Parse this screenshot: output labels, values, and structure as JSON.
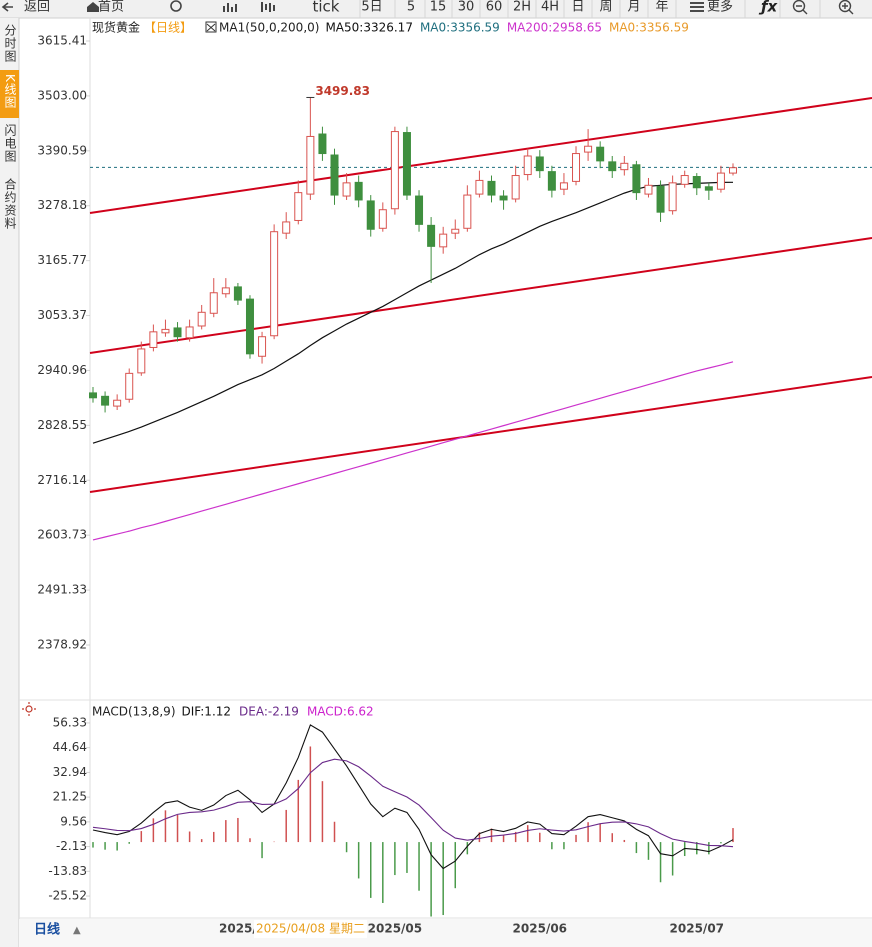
{
  "toolbar": [
    "返回",
    "首页",
    "tick",
    "5日",
    "5",
    "15",
    "30",
    "60",
    "2H",
    "4H",
    "日",
    "周",
    "月",
    "年",
    "更多"
  ],
  "sidebar": [
    "分时图",
    "K线图",
    "闪电图",
    "合约资料"
  ],
  "footer": {
    "period": "日线",
    "cursor": "2025/04/08 星期二"
  },
  "chart_data": [
    {
      "type": "candlestick",
      "title": "现货黄金",
      "period": "【日线】",
      "indicator": "MA1(50,0,200,0)",
      "open": [
        2895,
        2888,
        2868,
        2882,
        2936,
        2988,
        3018,
        3028,
        3008,
        3032,
        3058,
        3098,
        3112,
        3087,
        2970,
        3012,
        3222,
        3248,
        3302,
        3425,
        3382,
        3298,
        3326,
        3288,
        3232,
        3272,
        3428,
        3298,
        3238,
        3194,
        3222,
        3232,
        3302,
        3328,
        3298,
        3292,
        3342,
        3378,
        3348,
        3312,
        3328,
        3388,
        3398,
        3368,
        3352,
        3362,
        3302,
        3318,
        3268,
        3322,
        3338,
        3317,
        3312,
        3345
      ],
      "high": [
        2907,
        2898,
        2892,
        2945,
        3000,
        3035,
        3045,
        3040,
        3045,
        3075,
        3130,
        3130,
        3120,
        3095,
        3020,
        3240,
        3265,
        3330,
        3499.83,
        3440,
        3395,
        3345,
        3340,
        3300,
        3285,
        3440,
        3440,
        3310,
        3255,
        3235,
        3250,
        3320,
        3350,
        3340,
        3310,
        3360,
        3395,
        3392,
        3360,
        3345,
        3400,
        3435,
        3410,
        3380,
        3380,
        3370,
        3335,
        3330,
        3340,
        3350,
        3345,
        3325,
        3360,
        3365
      ],
      "low": [
        2875,
        2855,
        2860,
        2875,
        2930,
        2980,
        3010,
        3000,
        3000,
        3025,
        3050,
        3090,
        3075,
        2965,
        2955,
        3005,
        3210,
        3240,
        3290,
        3370,
        3280,
        3290,
        3275,
        3215,
        3225,
        3260,
        3290,
        3225,
        3120,
        3180,
        3210,
        3225,
        3295,
        3285,
        3270,
        3285,
        3330,
        3335,
        3295,
        3300,
        3320,
        3370,
        3355,
        3335,
        3340,
        3290,
        3295,
        3245,
        3260,
        3315,
        3300,
        3290,
        3305,
        3340
      ],
      "close": [
        2885,
        2870,
        2880,
        2935,
        2985,
        3020,
        3025,
        3010,
        3030,
        3060,
        3100,
        3110,
        3085,
        2975,
        3010,
        3225,
        3245,
        3305,
        3420,
        3385,
        3300,
        3325,
        3290,
        3230,
        3270,
        3430,
        3300,
        3240,
        3195,
        3220,
        3230,
        3300,
        3330,
        3300,
        3290,
        3340,
        3380,
        3350,
        3310,
        3325,
        3385,
        3400,
        3370,
        3350,
        3365,
        3305,
        3320,
        3265,
        3325,
        3340,
        3315,
        3310,
        3345,
        3356
      ],
      "up_color": "#d9534f",
      "down_color": "#3f8f3f",
      "lines": [
        {
          "name": "MA50:3326.17",
          "color": "#111111",
          "values": [
            2792,
            2800,
            2808,
            2816,
            2825,
            2835,
            2845,
            2855,
            2866,
            2877,
            2888,
            2900,
            2912,
            2922,
            2932,
            2945,
            2960,
            2975,
            2992,
            3008,
            3022,
            3036,
            3048,
            3060,
            3072,
            3086,
            3100,
            3114,
            3126,
            3138,
            3150,
            3164,
            3178,
            3190,
            3200,
            3212,
            3224,
            3236,
            3246,
            3255,
            3264,
            3274,
            3284,
            3294,
            3304,
            3312,
            3318,
            3320,
            3322,
            3323,
            3324,
            3325,
            3326,
            3326.17
          ]
        },
        {
          "name": "MA0:3356.59",
          "color": "#1f6f7f",
          "level": 3356.59
        },
        {
          "name": "MA200:2958.65",
          "color": "#cc33cc",
          "values": [
            2594,
            2600,
            2606,
            2612,
            2619,
            2625,
            2632,
            2639,
            2646,
            2653,
            2660,
            2667,
            2674,
            2681,
            2688,
            2695,
            2702,
            2709,
            2716,
            2723,
            2730,
            2737,
            2744,
            2751,
            2758,
            2765,
            2772,
            2779,
            2786,
            2793,
            2800,
            2807,
            2814,
            2821,
            2828,
            2835,
            2842,
            2849,
            2856,
            2863,
            2870,
            2877,
            2884,
            2891,
            2898,
            2905,
            2912,
            2919,
            2926,
            2933,
            2940,
            2946,
            2952,
            2958.65
          ]
        },
        {
          "name": "MA0:3356.59",
          "color": "#e89a2a"
        }
      ],
      "trendlines": [
        {
          "start": 3263.3,
          "end": 3498.7
        },
        {
          "start": 2976.7,
          "end": 3212.1
        },
        {
          "start": 2692.2,
          "end": 2927.6
        }
      ],
      "trend_color": "#d0021b",
      "peak_color": "#c0392b",
      "ylim": [
        2266.3,
        3662.5
      ],
      "yticks": [
        3615.41,
        {
          "value": 3503,
          "label": "3503.00"
        },
        3390.59,
        3278.18,
        3165.77,
        3053.37,
        2940.96,
        2828.55,
        2716.14,
        2603.73,
        2491.33,
        2378.92
      ]
    },
    {
      "type": "macd",
      "title": "MACD(13,8,9)",
      "categories": [
        null,
        null,
        null,
        null,
        null,
        null,
        null,
        null,
        null,
        null,
        null,
        null,
        "2025/",
        null,
        null,
        null,
        null,
        null,
        null,
        null,
        null,
        null,
        null,
        null,
        null,
        "2025/05",
        null,
        null,
        null,
        null,
        null,
        null,
        null,
        null,
        null,
        null,
        null,
        "2025/06",
        null,
        null,
        null,
        null,
        null,
        null,
        null,
        null,
        null,
        null,
        null,
        null,
        "2025/07",
        null,
        null,
        null
      ],
      "series": [
        {
          "name": "DIF:1.12",
          "color": "#111111",
          "values": [
            5.7,
            4.5,
            3.5,
            5.0,
            9.0,
            14.0,
            18.5,
            19.5,
            16.5,
            15.0,
            17.5,
            22.0,
            24.5,
            20.0,
            14.0,
            18.0,
            28.0,
            40.0,
            55.4,
            52.0,
            44.0,
            36.0,
            27.0,
            18.0,
            12.0,
            16.0,
            14.0,
            6.0,
            -6.0,
            -12.5,
            -9.0,
            -2.0,
            4.0,
            6.0,
            5.0,
            6.5,
            9.5,
            8.5,
            4.0,
            3.5,
            7.5,
            12.0,
            13.0,
            11.5,
            10.0,
            6.0,
            3.0,
            -5.5,
            -6.5,
            -3.0,
            -3.5,
            -4.5,
            -2.0,
            1.12
          ]
        },
        {
          "name": "DEA:-2.19",
          "color": "#6a2a8a",
          "values": [
            7.0,
            6.3,
            5.5,
            5.4,
            6.4,
            8.4,
            11.0,
            13.1,
            14.0,
            14.3,
            15.1,
            16.8,
            18.8,
            19.1,
            17.8,
            17.9,
            20.4,
            25.3,
            32.8,
            37.6,
            39.2,
            38.4,
            35.6,
            31.2,
            26.4,
            23.8,
            21.3,
            17.5,
            11.6,
            5.6,
            1.9,
            0.9,
            1.7,
            2.8,
            3.3,
            4.1,
            5.5,
            6.3,
            5.7,
            5.2,
            5.8,
            7.3,
            8.7,
            9.4,
            9.5,
            8.6,
            7.2,
            4.0,
            1.4,
            0.3,
            -0.6,
            -1.6,
            -1.7,
            -2.19
          ]
        },
        {
          "name": "MACD:6.62",
          "color": "#cc22cc",
          "up_color": "#d05050",
          "down_color": "#4a9a4a",
          "values": [
            -2.6,
            -3.6,
            -4.0,
            -0.8,
            5.2,
            11.2,
            15.0,
            12.8,
            5.0,
            1.4,
            4.8,
            10.4,
            11.4,
            1.8,
            -7.6,
            0.2,
            15.2,
            29.4,
            45.2,
            28.8,
            9.6,
            -4.8,
            -17.2,
            -26.4,
            -28.8,
            -15.6,
            -14.6,
            -23.0,
            -35.2,
            -34.5,
            -21.8,
            -5.8,
            4.6,
            6.4,
            3.4,
            4.8,
            8.0,
            4.4,
            -3.4,
            -3.4,
            3.4,
            9.4,
            8.6,
            4.2,
            1.0,
            -5.2,
            -8.4,
            -19.0,
            -15.8,
            -6.6,
            -5.8,
            -5.8,
            -0.6,
            6.62
          ]
        }
      ],
      "ylim": [
        -35.9,
        61.5
      ],
      "yticks": [
        56.33,
        44.64,
        32.94,
        21.25,
        9.56,
        -2.13,
        -13.83,
        -25.52
      ]
    }
  ]
}
